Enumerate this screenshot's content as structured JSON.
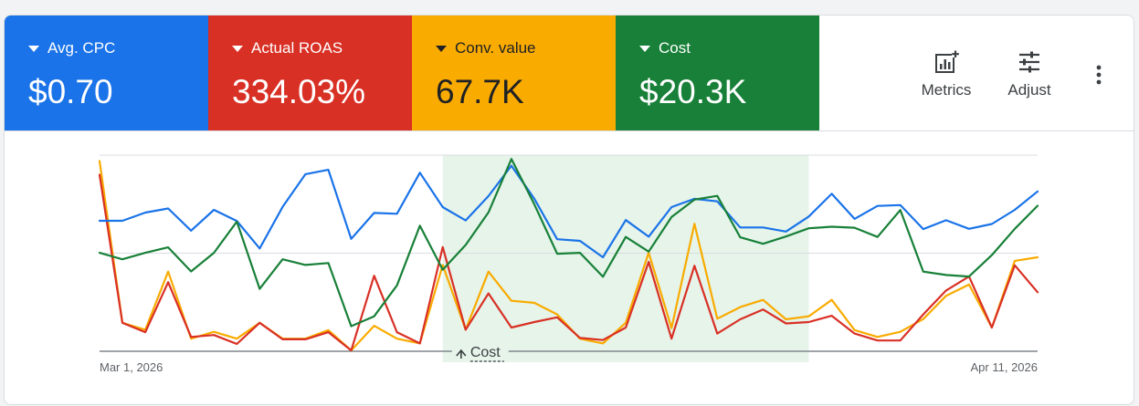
{
  "metrics": [
    {
      "id": "avg-cpc",
      "label": "Avg. CPC",
      "value": "$0.70",
      "color": "#1a73e8",
      "text_color": "#ffffff"
    },
    {
      "id": "actual-roas",
      "label": "Actual ROAS",
      "value": "334.03%",
      "color": "#d93025",
      "text_color": "#ffffff"
    },
    {
      "id": "conv-value",
      "label": "Conv. value",
      "value": "67.7K",
      "color": "#f9ab00",
      "text_color": "#202124"
    },
    {
      "id": "cost",
      "label": "Cost",
      "value": "$20.3K",
      "color": "#188038",
      "text_color": "#ffffff"
    }
  ],
  "toolbar": {
    "metrics_label": "Metrics",
    "metrics_icon": "add-chart-icon",
    "adjust_label": "Adjust",
    "adjust_icon": "tune-icon",
    "more_icon": "more-vert-icon"
  },
  "chart_data": {
    "type": "line",
    "x_start_label": "Mar 1, 2026",
    "x_end_label": "Apr 11, 2026",
    "grid": true,
    "highlight_range": [
      15,
      31
    ],
    "highlight_color": "#e6f4ea",
    "annotation": {
      "label": "Cost",
      "icon": "arrow-up-icon",
      "x_index": 17
    },
    "series": [
      {
        "metric": "avg-cpc",
        "color": "#1a73e8",
        "values": [
          0.665,
          0.665,
          0.707,
          0.728,
          0.615,
          0.721,
          0.664,
          0.524,
          0.736,
          0.903,
          0.925,
          0.573,
          0.705,
          0.701,
          0.91,
          0.735,
          0.667,
          0.791,
          0.946,
          0.778,
          0.571,
          0.563,
          0.479,
          0.669,
          0.584,
          0.735,
          0.777,
          0.764,
          0.631,
          0.631,
          0.61,
          0.687,
          0.803,
          0.675,
          0.741,
          0.745,
          0.623,
          0.668,
          0.624,
          0.649,
          0.721,
          0.815
        ]
      },
      {
        "metric": "actual-roas",
        "color": "#d93025",
        "values": [
          0.9,
          0.145,
          0.097,
          0.352,
          0.073,
          0.083,
          0.037,
          0.145,
          0.061,
          0.061,
          0.097,
          0.004,
          0.385,
          0.097,
          0.04,
          0.531,
          0.11,
          0.295,
          0.121,
          0.149,
          0.173,
          0.068,
          0.057,
          0.121,
          0.456,
          0.064,
          0.436,
          0.09,
          0.163,
          0.213,
          0.142,
          0.149,
          0.181,
          0.09,
          0.055,
          0.055,
          0.188,
          0.31,
          0.381,
          0.121,
          0.438,
          0.301
        ]
      },
      {
        "metric": "conv-value",
        "color": "#f9ab00",
        "values": [
          0.97,
          0.145,
          0.11,
          0.406,
          0.064,
          0.099,
          0.064,
          0.145,
          0.064,
          0.064,
          0.108,
          0.004,
          0.13,
          0.064,
          0.04,
          0.44,
          0.11,
          0.406,
          0.257,
          0.247,
          0.188,
          0.064,
          0.04,
          0.145,
          0.503,
          0.118,
          0.65,
          0.166,
          0.225,
          0.262,
          0.163,
          0.178,
          0.262,
          0.108,
          0.073,
          0.099,
          0.164,
          0.283,
          0.34,
          0.121,
          0.461,
          0.479
        ]
      },
      {
        "metric": "cost",
        "color": "#188038",
        "values": [
          0.502,
          0.469,
          0.502,
          0.53,
          0.407,
          0.502,
          0.661,
          0.318,
          0.469,
          0.44,
          0.45,
          0.128,
          0.178,
          0.336,
          0.64,
          0.416,
          0.542,
          0.708,
          0.98,
          0.75,
          0.497,
          0.502,
          0.38,
          0.583,
          0.508,
          0.684,
          0.773,
          0.792,
          0.581,
          0.548,
          0.585,
          0.627,
          0.635,
          0.63,
          0.583,
          0.72,
          0.406,
          0.389,
          0.381,
          0.49,
          0.624,
          0.742
        ]
      }
    ]
  }
}
